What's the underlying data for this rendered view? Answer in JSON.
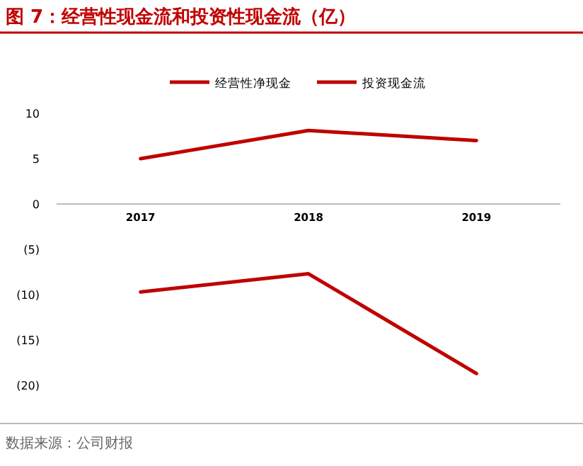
{
  "chart_data": {
    "type": "line",
    "title": "图 7：经营性现金流和投资性现金流（亿）",
    "categories": [
      "2017",
      "2018",
      "2019"
    ],
    "series": [
      {
        "name": "经营性净现金",
        "color": "#c00000",
        "values": [
          5,
          8.1,
          7
        ]
      },
      {
        "name": "投资现金流",
        "color": "#c00000",
        "values": [
          -9.7,
          -7.7,
          -18.7
        ]
      }
    ],
    "ylim": [
      -20,
      10
    ],
    "yticks": [
      10,
      5,
      0,
      {
        "value": -5,
        "label": "(5)"
      },
      {
        "value": -10,
        "label": "(10)"
      },
      {
        "value": -15,
        "label": "(15)"
      },
      {
        "value": -20,
        "label": "(20)"
      }
    ],
    "legend": "top",
    "grid": false,
    "marker": "none",
    "line_style": "solid",
    "annotations": [
      "数据来源：公司财报"
    ]
  }
}
